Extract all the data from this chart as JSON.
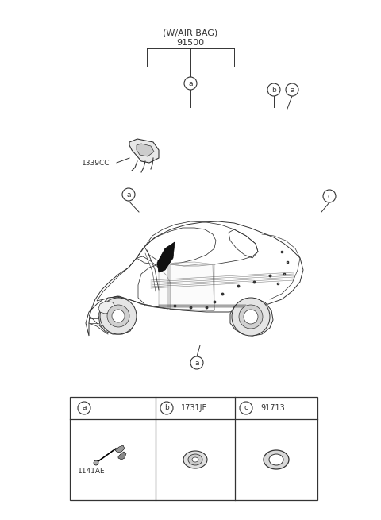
{
  "bg_color": "#ffffff",
  "title_label": "(W/AIR BAG)",
  "title_number": "91500",
  "part_1339CC_label": "1339CC",
  "table_parts": [
    {
      "circle_label": "a",
      "part_number": "1141AE"
    },
    {
      "circle_label": "b",
      "part_number": "1731JF"
    },
    {
      "circle_label": "c",
      "part_number": "91713"
    }
  ],
  "figsize": [
    4.8,
    6.55
  ],
  "dpi": 100,
  "text_color": "#333333",
  "line_color": "#333333",
  "line_lw": 0.7
}
